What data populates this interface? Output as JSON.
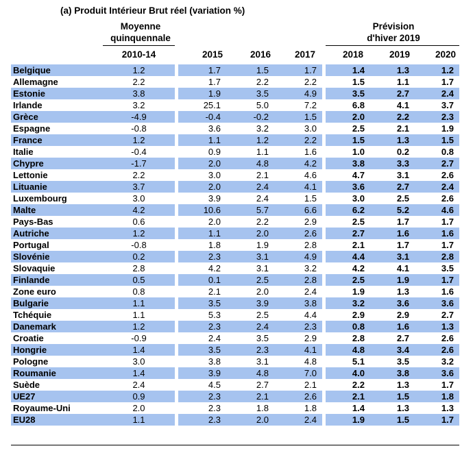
{
  "title": "(a) Produit Intérieur Brut réel (variation %)",
  "header": {
    "group_left_line1": "Moyenne",
    "group_left_line2": "quinquennale",
    "group_right_line1": "Prévision",
    "group_right_line2": "d'hiver 2019",
    "columns": [
      "2010-14",
      "2015",
      "2016",
      "2017",
      "2018",
      "2019",
      "2020"
    ]
  },
  "colors": {
    "highlight_row": "#a6c3ef"
  },
  "rows": [
    {
      "country": "Belgique",
      "values": [
        "1.2",
        "1.7",
        "1.5",
        "1.7",
        "1.4",
        "1.3",
        "1.2"
      ],
      "highlight": true
    },
    {
      "country": "Allemagne",
      "values": [
        "2.2",
        "1.7",
        "2.2",
        "2.2",
        "1.5",
        "1.1",
        "1.7"
      ],
      "highlight": false
    },
    {
      "country": "Estonie",
      "values": [
        "3.8",
        "1.9",
        "3.5",
        "4.9",
        "3.5",
        "2.7",
        "2.4"
      ],
      "highlight": true
    },
    {
      "country": "Irlande",
      "values": [
        "3.2",
        "25.1",
        "5.0",
        "7.2",
        "6.8",
        "4.1",
        "3.7"
      ],
      "highlight": false
    },
    {
      "country": "Grèce",
      "values": [
        "-4.9",
        "-0.4",
        "-0.2",
        "1.5",
        "2.0",
        "2.2",
        "2.3"
      ],
      "highlight": true
    },
    {
      "country": "Espagne",
      "values": [
        "-0.8",
        "3.6",
        "3.2",
        "3.0",
        "2.5",
        "2.1",
        "1.9"
      ],
      "highlight": false
    },
    {
      "country": "France",
      "values": [
        "1.2",
        "1.1",
        "1.2",
        "2.2",
        "1.5",
        "1.3",
        "1.5"
      ],
      "highlight": true
    },
    {
      "country": "Italie",
      "values": [
        "-0.4",
        "0.9",
        "1.1",
        "1.6",
        "1.0",
        "0.2",
        "0.8"
      ],
      "highlight": false
    },
    {
      "country": "Chypre",
      "values": [
        "-1.7",
        "2.0",
        "4.8",
        "4.2",
        "3.8",
        "3.3",
        "2.7"
      ],
      "highlight": true
    },
    {
      "country": "Lettonie",
      "values": [
        "2.2",
        "3.0",
        "2.1",
        "4.6",
        "4.7",
        "3.1",
        "2.6"
      ],
      "highlight": false
    },
    {
      "country": "Lituanie",
      "values": [
        "3.7",
        "2.0",
        "2.4",
        "4.1",
        "3.6",
        "2.7",
        "2.4"
      ],
      "highlight": true
    },
    {
      "country": "Luxembourg",
      "values": [
        "3.0",
        "3.9",
        "2.4",
        "1.5",
        "3.0",
        "2.5",
        "2.6"
      ],
      "highlight": false
    },
    {
      "country": "Malte",
      "values": [
        "4.2",
        "10.6",
        "5.7",
        "6.6",
        "6.2",
        "5.2",
        "4.6"
      ],
      "highlight": true
    },
    {
      "country": "Pays-Bas",
      "values": [
        "0.6",
        "2.0",
        "2.2",
        "2.9",
        "2.5",
        "1.7",
        "1.7"
      ],
      "highlight": false
    },
    {
      "country": "Autriche",
      "values": [
        "1.2",
        "1.1",
        "2.0",
        "2.6",
        "2.7",
        "1.6",
        "1.6"
      ],
      "highlight": true
    },
    {
      "country": "Portugal",
      "values": [
        "-0.8",
        "1.8",
        "1.9",
        "2.8",
        "2.1",
        "1.7",
        "1.7"
      ],
      "highlight": false
    },
    {
      "country": "Slovénie",
      "values": [
        "0.2",
        "2.3",
        "3.1",
        "4.9",
        "4.4",
        "3.1",
        "2.8"
      ],
      "highlight": true
    },
    {
      "country": "Slovaquie",
      "values": [
        "2.8",
        "4.2",
        "3.1",
        "3.2",
        "4.2",
        "4.1",
        "3.5"
      ],
      "highlight": false
    },
    {
      "country": "Finlande",
      "values": [
        "0.5",
        "0.1",
        "2.5",
        "2.8",
        "2.5",
        "1.9",
        "1.7"
      ],
      "highlight": true
    },
    {
      "country": "Zone euro",
      "values": [
        "0.8",
        "2.1",
        "2.0",
        "2.4",
        "1.9",
        "1.3",
        "1.6"
      ],
      "highlight": false
    },
    {
      "country": "Bulgarie",
      "values": [
        "1.1",
        "3.5",
        "3.9",
        "3.8",
        "3.2",
        "3.6",
        "3.6"
      ],
      "highlight": true
    },
    {
      "country": "Tchéquie",
      "values": [
        "1.1",
        "5.3",
        "2.5",
        "4.4",
        "2.9",
        "2.9",
        "2.7"
      ],
      "highlight": false
    },
    {
      "country": "Danemark",
      "values": [
        "1.2",
        "2.3",
        "2.4",
        "2.3",
        "0.8",
        "1.6",
        "1.3"
      ],
      "highlight": true
    },
    {
      "country": "Croatie",
      "values": [
        "-0.9",
        "2.4",
        "3.5",
        "2.9",
        "2.8",
        "2.7",
        "2.6"
      ],
      "highlight": false
    },
    {
      "country": "Hongrie",
      "values": [
        "1.4",
        "3.5",
        "2.3",
        "4.1",
        "4.8",
        "3.4",
        "2.6"
      ],
      "highlight": true
    },
    {
      "country": "Pologne",
      "values": [
        "3.0",
        "3.8",
        "3.1",
        "4.8",
        "5.1",
        "3.5",
        "3.2"
      ],
      "highlight": false
    },
    {
      "country": "Roumanie",
      "values": [
        "1.4",
        "3.9",
        "4.8",
        "7.0",
        "4.0",
        "3.8",
        "3.6"
      ],
      "highlight": true
    },
    {
      "country": "Suède",
      "values": [
        "2.4",
        "4.5",
        "2.7",
        "2.1",
        "2.2",
        "1.3",
        "1.7"
      ],
      "highlight": false
    },
    {
      "country": "UE27",
      "values": [
        "0.9",
        "2.3",
        "2.1",
        "2.6",
        "2.1",
        "1.5",
        "1.8"
      ],
      "highlight": true
    },
    {
      "country": "Royaume-Uni",
      "values": [
        "2.0",
        "2.3",
        "1.8",
        "1.8",
        "1.4",
        "1.3",
        "1.3"
      ],
      "highlight": false
    },
    {
      "country": "EU28",
      "values": [
        "1.1",
        "2.3",
        "2.0",
        "2.4",
        "1.9",
        "1.5",
        "1.7"
      ],
      "highlight": true
    }
  ]
}
